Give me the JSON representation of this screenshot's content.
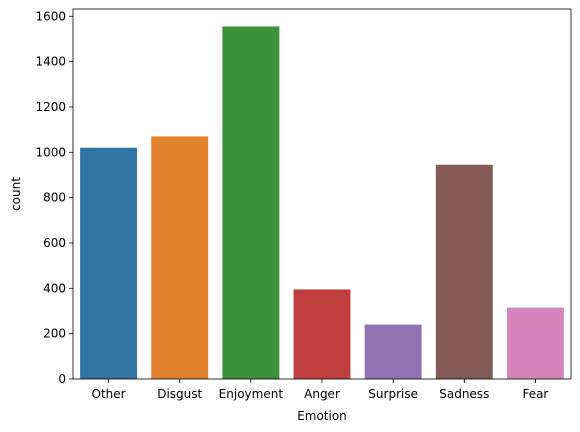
{
  "chart_data": {
    "type": "bar",
    "categories": [
      "Other",
      "Disgust",
      "Enjoyment",
      "Anger",
      "Surprise",
      "Sadness",
      "Fear"
    ],
    "values": [
      1020,
      1070,
      1555,
      395,
      240,
      945,
      315
    ],
    "colors": [
      "#3274a1",
      "#e1812c",
      "#3a923a",
      "#c03d3e",
      "#9372b2",
      "#845b53",
      "#d684bd"
    ],
    "xlabel": "Emotion",
    "ylabel": "count",
    "ylim": [
      0,
      1632
    ],
    "yticks": [
      0,
      200,
      400,
      600,
      800,
      1000,
      1200,
      1400,
      1600
    ],
    "grid": false,
    "legend": "none"
  }
}
